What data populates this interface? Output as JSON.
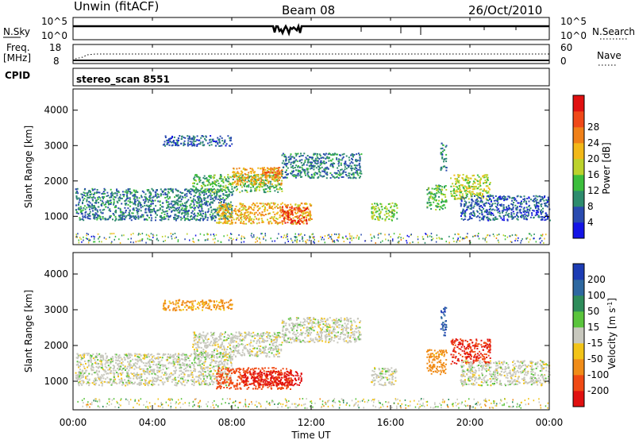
{
  "header": {
    "station": "Unwin (fitACF)",
    "beam": "Beam 08",
    "date": "26/Oct/2010"
  },
  "strips": {
    "nsky": {
      "label": "N.Sky",
      "left_ticks": [
        "10^5",
        "10^0"
      ],
      "right_ticks": [
        "10^5",
        "10^0"
      ],
      "right_label": "N.Search"
    },
    "freq": {
      "label": "Freq.",
      "unit": "[MHz]",
      "left_ticks": [
        "18",
        "8"
      ],
      "right_ticks": [
        "60",
        "0"
      ],
      "right_label": "Nave"
    },
    "cpid": {
      "label": "CPID",
      "text": "stereo_scan 8551"
    }
  },
  "panels": {
    "ylabel": "Slant Range [km]",
    "ylim": [
      200,
      4600
    ],
    "yticks": [
      1000,
      2000,
      3000,
      4000
    ]
  },
  "time_axis": {
    "xlabel": "Time UT",
    "ticks": [
      "00:00",
      "04:00",
      "08:00",
      "12:00",
      "16:00",
      "20:00",
      "00:00"
    ]
  },
  "colors": {
    "power": [
      "#1414e6",
      "#2a4bb0",
      "#2e8c6e",
      "#3cbe3c",
      "#bcd22c",
      "#f2b818",
      "#f08018",
      "#f04818",
      "#e01010"
    ],
    "velocity": [
      "#1c3cb4",
      "#2e68a0",
      "#2e8c5a",
      "#5ac43c",
      "#c8c8be",
      "#f2c418",
      "#f08c18",
      "#f04a14",
      "#e01010"
    ]
  },
  "chart_data": [
    {
      "type": "heatmap",
      "title": "Power",
      "colorbar_label": "Power [dB]",
      "colorbar_ticks": [
        4,
        8,
        12,
        16,
        20,
        24,
        28
      ],
      "clim": [
        0,
        32
      ],
      "x_range_hours": [
        0,
        24
      ],
      "ylim": [
        200,
        4600
      ],
      "echo_regions": [
        {
          "t0": 0.1,
          "t1": 8.0,
          "r0": 900,
          "r1": 1800,
          "value": 8
        },
        {
          "t0": 6.0,
          "t1": 10.5,
          "r0": 1700,
          "r1": 2200,
          "value": 12
        },
        {
          "t0": 8.0,
          "t1": 10.5,
          "r0": 1900,
          "r1": 2400,
          "value": 20
        },
        {
          "t0": 9.5,
          "t1": 10.5,
          "r0": 2100,
          "r1": 2400,
          "value": 24
        },
        {
          "t0": 7.2,
          "t1": 12.0,
          "r0": 800,
          "r1": 1400,
          "value": 20
        },
        {
          "t0": 10.5,
          "t1": 11.8,
          "r0": 800,
          "r1": 1300,
          "value": 28
        },
        {
          "t0": 4.5,
          "t1": 8.0,
          "r0": 3000,
          "r1": 3300,
          "value": 6
        },
        {
          "t0": 10.5,
          "t1": 14.5,
          "r0": 2100,
          "r1": 2800,
          "value": 8
        },
        {
          "t0": 15.0,
          "t1": 16.3,
          "r0": 900,
          "r1": 1400,
          "value": 14
        },
        {
          "t0": 17.8,
          "t1": 18.8,
          "r0": 1200,
          "r1": 1900,
          "value": 12
        },
        {
          "t0": 18.5,
          "t1": 18.8,
          "r0": 2300,
          "r1": 3100,
          "value": 8
        },
        {
          "t0": 19.0,
          "t1": 21.0,
          "r0": 1500,
          "r1": 2200,
          "value": 16
        },
        {
          "t0": 19.5,
          "t1": 24.0,
          "r0": 900,
          "r1": 1600,
          "value": 6
        }
      ]
    },
    {
      "type": "heatmap",
      "title": "Velocity",
      "colorbar_label": "Velocity [m s^-1]",
      "colorbar_ticks": [
        200,
        100,
        50,
        15,
        -15,
        -50,
        -100,
        -200
      ],
      "clim": [
        -250,
        250
      ],
      "x_range_hours": [
        0,
        24
      ],
      "ylim": [
        200,
        4600
      ],
      "echo_regions": [
        {
          "t0": 0.1,
          "t1": 8.0,
          "r0": 900,
          "r1": 1800,
          "value": 0
        },
        {
          "t0": 6.0,
          "t1": 10.5,
          "r0": 1700,
          "r1": 2400,
          "value": 0
        },
        {
          "t0": 7.2,
          "t1": 11.0,
          "r0": 800,
          "r1": 1400,
          "value": -100
        },
        {
          "t0": 8.5,
          "t1": 11.5,
          "r0": 900,
          "r1": 1300,
          "value": -200
        },
        {
          "t0": 10.5,
          "t1": 14.5,
          "r0": 2100,
          "r1": 2800,
          "value": 0
        },
        {
          "t0": 4.5,
          "t1": 8.0,
          "r0": 3000,
          "r1": 3300,
          "value": -40
        },
        {
          "t0": 15.0,
          "t1": 16.3,
          "r0": 900,
          "r1": 1400,
          "value": 0
        },
        {
          "t0": 17.8,
          "t1": 18.8,
          "r0": 1200,
          "r1": 1900,
          "value": -50
        },
        {
          "t0": 18.5,
          "t1": 18.8,
          "r0": 2300,
          "r1": 3100,
          "value": 150
        },
        {
          "t0": 19.0,
          "t1": 21.0,
          "r0": 1500,
          "r1": 2200,
          "value": -150
        },
        {
          "t0": 19.5,
          "t1": 24.0,
          "r0": 900,
          "r1": 1600,
          "value": 0
        }
      ]
    }
  ]
}
